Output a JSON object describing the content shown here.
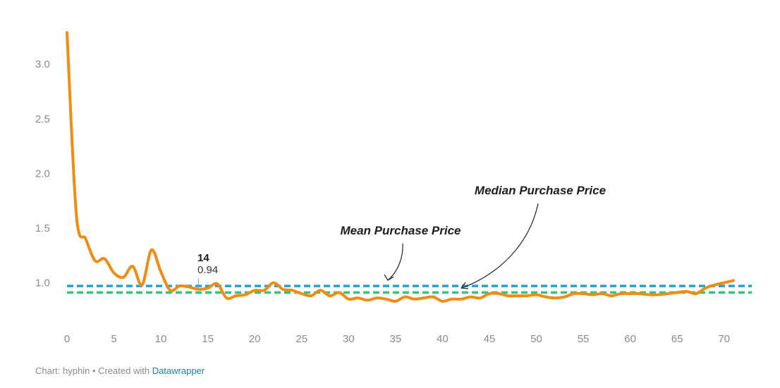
{
  "chart_data": {
    "type": "line",
    "x": [
      0,
      1,
      2,
      3,
      4,
      5,
      6,
      7,
      8,
      9,
      10,
      11,
      12,
      13,
      14,
      15,
      16,
      17,
      18,
      19,
      20,
      21,
      22,
      23,
      24,
      25,
      26,
      27,
      28,
      29,
      30,
      31,
      32,
      33,
      34,
      35,
      36,
      37,
      38,
      39,
      40,
      41,
      42,
      43,
      44,
      45,
      46,
      47,
      48,
      49,
      50,
      51,
      52,
      53,
      54,
      55,
      56,
      57,
      58,
      59,
      60,
      61,
      62,
      63,
      64,
      65,
      66,
      67,
      68,
      69,
      70,
      71
    ],
    "series": [
      {
        "values": [
          3.29,
          1.62,
          1.4,
          1.2,
          1.22,
          1.09,
          1.05,
          1.15,
          0.98,
          1.3,
          1.1,
          0.93,
          0.97,
          0.96,
          0.94,
          0.95,
          0.99,
          0.86,
          0.88,
          0.89,
          0.93,
          0.93,
          1.0,
          0.94,
          0.93,
          0.9,
          0.88,
          0.93,
          0.88,
          0.91,
          0.85,
          0.86,
          0.84,
          0.86,
          0.85,
          0.83,
          0.87,
          0.85,
          0.86,
          0.87,
          0.83,
          0.85,
          0.85,
          0.87,
          0.86,
          0.9,
          0.9,
          0.88,
          0.88,
          0.88,
          0.89,
          0.87,
          0.86,
          0.87,
          0.9,
          0.9,
          0.89,
          0.9,
          0.88,
          0.9,
          0.9,
          0.9,
          0.89,
          0.89,
          0.9,
          0.91,
          0.92,
          0.9,
          0.95,
          0.98,
          1.0,
          1.02
        ],
        "color": "#f18b11"
      }
    ],
    "reference_lines": [
      {
        "label": "Mean Purchase Price",
        "value": 0.97,
        "color": "#2b9fc9"
      },
      {
        "label": "Median Purchase Price",
        "value": 0.91,
        "color": "#2ec77a"
      }
    ],
    "xlim": [
      0,
      71
    ],
    "ylim": [
      0.7,
      3.33
    ],
    "x_ticks": [
      0,
      5,
      10,
      15,
      20,
      25,
      30,
      35,
      40,
      45,
      50,
      55,
      60,
      65,
      70
    ],
    "y_ticks": [
      1.0,
      1.5,
      2.0,
      2.5,
      3.0
    ],
    "y_tick_labels": [
      "1.0",
      "1.5",
      "2.0",
      "2.5",
      "3.0"
    ],
    "tooltip": {
      "x_label": "14",
      "y_label": "0.94"
    },
    "grid": false,
    "title": "",
    "xlabel": "",
    "ylabel": ""
  },
  "footer": {
    "prefix": "Chart: hyphin • Created with ",
    "link_text": "Datawrapper"
  }
}
